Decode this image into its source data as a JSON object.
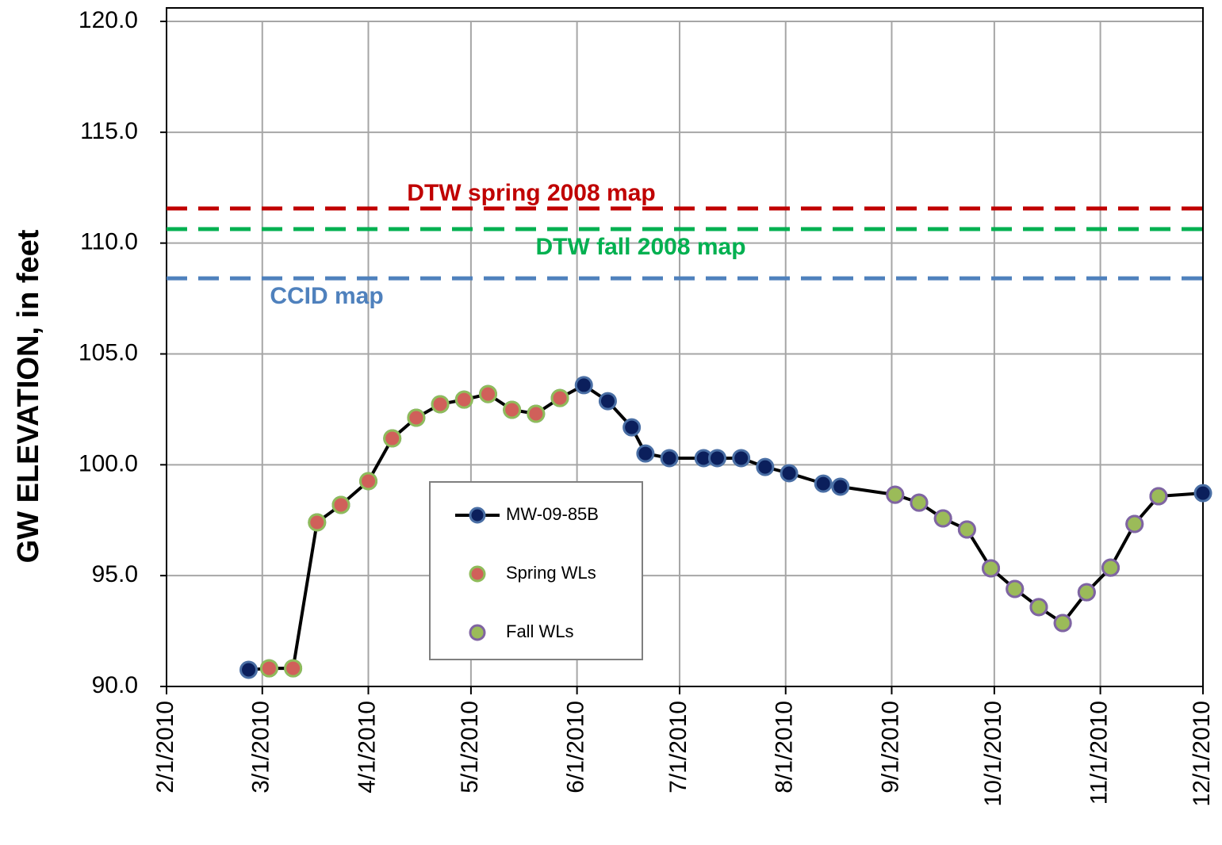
{
  "chart_data": {
    "type": "line",
    "y_label": "GW ELEVATION, in feet",
    "xlim": [
      "2/1/2010",
      "12/1/2010"
    ],
    "xticks": [
      "2/1/2010",
      "3/1/2010",
      "4/1/2010",
      "5/1/2010",
      "6/1/2010",
      "7/1/2010",
      "8/1/2010",
      "9/1/2010",
      "10/1/2010",
      "11/1/2010",
      "12/1/2010"
    ],
    "ylim": [
      90,
      120
    ],
    "yticks": [
      {
        "value": 90,
        "label": "90.0"
      },
      {
        "value": 95,
        "label": "95.0"
      },
      {
        "value": 100,
        "label": "100.0"
      },
      {
        "value": 105,
        "label": "105.0"
      },
      {
        "value": 110,
        "label": "110.0"
      },
      {
        "value": 115,
        "label": "115.0"
      },
      {
        "value": 120,
        "label": "120.0"
      }
    ],
    "grid": true,
    "series": [
      {
        "name": "MW-09-85B",
        "color": "#000000",
        "marker_color": "#0b1f5c",
        "edge_color": "#4a6fa5",
        "line": true,
        "x": [
          "2/25/2010",
          "3/3/2010",
          "3/10/2010",
          "3/17/2010",
          "3/24/2010",
          "4/1/2010",
          "4/8/2010",
          "4/15/2010",
          "4/22/2010",
          "4/29/2010",
          "5/6/2010",
          "5/13/2010",
          "5/20/2010",
          "5/27/2010",
          "6/3/2010",
          "6/10/2010",
          "6/17/2010",
          "6/21/2010",
          "6/28/2010",
          "7/8/2010",
          "7/12/2010",
          "7/19/2010",
          "7/26/2010",
          "8/2/2010",
          "8/12/2010",
          "8/17/2010",
          "9/2/2010",
          "9/9/2010",
          "9/16/2010",
          "9/23/2010",
          "9/30/2010",
          "10/7/2010",
          "10/14/2010",
          "10/21/2010",
          "10/28/2010",
          "11/4/2010",
          "11/11/2010",
          "11/18/2010",
          "12/1/2010"
        ],
        "values": [
          90.75,
          90.82,
          90.82,
          97.4,
          98.19,
          99.26,
          101.19,
          102.12,
          102.73,
          102.94,
          103.19,
          102.48,
          102.3,
          103.01,
          103.59,
          102.87,
          101.69,
          100.51,
          100.3,
          100.3,
          100.3,
          100.3,
          99.9,
          99.62,
          99.15,
          99.01,
          98.65,
          98.29,
          97.58,
          97.08,
          95.33,
          94.4,
          93.58,
          92.86,
          94.25,
          95.36,
          97.33,
          98.58,
          98.72
        ]
      },
      {
        "name": "Spring WLs",
        "color": "#d0605a",
        "marker_color": "#d0605a",
        "edge_color": "#8fbc5a",
        "line": false,
        "x": [
          "3/3/2010",
          "3/10/2010",
          "3/17/2010",
          "3/24/2010",
          "4/1/2010",
          "4/8/2010",
          "4/15/2010",
          "4/22/2010",
          "4/29/2010",
          "5/6/2010",
          "5/13/2010",
          "5/20/2010",
          "5/27/2010"
        ],
        "values": [
          90.82,
          90.82,
          97.4,
          98.19,
          99.26,
          101.19,
          102.12,
          102.73,
          102.94,
          103.19,
          102.48,
          102.3,
          103.01
        ]
      },
      {
        "name": "Fall WLs",
        "color": "#9bbb59",
        "marker_color": "#9bbb59",
        "edge_color": "#8064a2",
        "line": false,
        "x": [
          "9/2/2010",
          "9/9/2010",
          "9/16/2010",
          "9/23/2010",
          "9/30/2010",
          "10/7/2010",
          "10/14/2010",
          "10/21/2010",
          "10/28/2010",
          "11/4/2010",
          "11/11/2010",
          "11/18/2010"
        ],
        "values": [
          98.65,
          98.29,
          97.58,
          97.08,
          95.33,
          94.4,
          93.58,
          92.86,
          94.25,
          95.36,
          97.33,
          98.58
        ]
      }
    ],
    "reference_lines": [
      {
        "label": "DTW spring 2008 map",
        "value": 111.56,
        "color": "#c00000"
      },
      {
        "label": "DTW fall 2008 map",
        "value": 110.63,
        "color": "#00b050"
      },
      {
        "label": "CCID map",
        "value": 108.41,
        "color": "#4f81bd"
      }
    ]
  }
}
